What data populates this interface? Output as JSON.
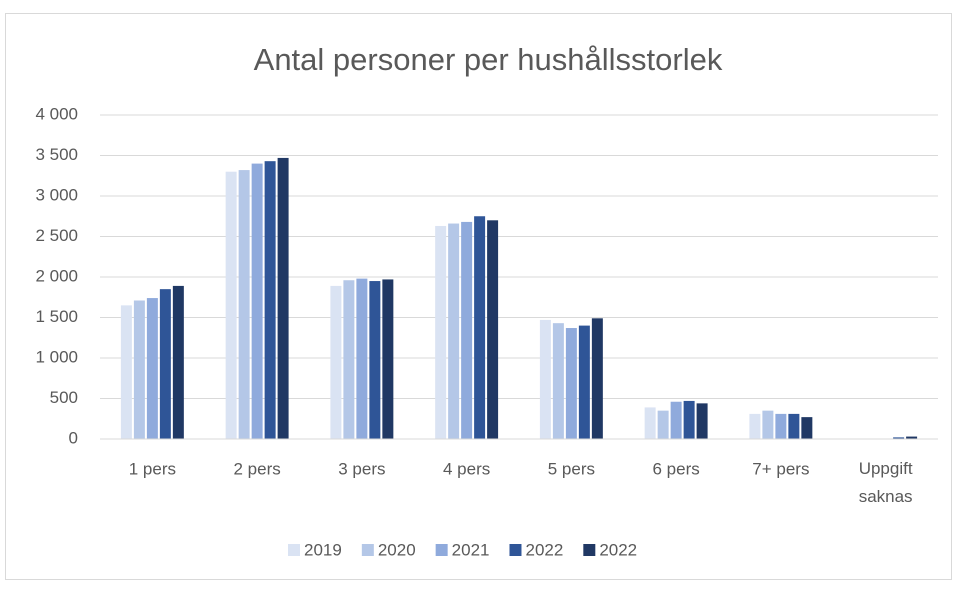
{
  "chart_data": {
    "type": "bar",
    "title": "Antal personer per hushållsstorlek",
    "categories": [
      "1 pers",
      "2 pers",
      "3 pers",
      "4 pers",
      "5 pers",
      "6 pers",
      "7+ pers",
      "Uppgift saknas"
    ],
    "series": [
      {
        "name": "2019",
        "color": "#dae3f3",
        "values": [
          1650,
          3300,
          1890,
          2630,
          1470,
          390,
          310,
          0
        ]
      },
      {
        "name": "2020",
        "color": "#b4c7e7",
        "values": [
          1710,
          3320,
          1960,
          2660,
          1430,
          350,
          350,
          0
        ]
      },
      {
        "name": "2021",
        "color": "#8faadc",
        "values": [
          1740,
          3400,
          1980,
          2680,
          1370,
          460,
          310,
          5
        ]
      },
      {
        "name": "2022",
        "color": "#2f5597",
        "values": [
          1850,
          3430,
          1950,
          2750,
          1400,
          470,
          310,
          20
        ]
      },
      {
        "name": "2022",
        "color": "#203864",
        "values": [
          1890,
          3470,
          1970,
          2700,
          1490,
          440,
          270,
          30
        ]
      }
    ],
    "ylim": [
      0,
      4000
    ],
    "yticks": [
      0,
      500,
      {
        "value": 1000,
        "label": "1 000"
      },
      {
        "value": 1500,
        "label": "1 500"
      },
      {
        "value": 2000,
        "label": "2 000"
      },
      {
        "value": 2500,
        "label": "2 500"
      },
      {
        "value": 3000,
        "label": "3 000"
      },
      {
        "value": 3500,
        "label": "3 500"
      },
      {
        "value": 4000,
        "label": "4 000"
      }
    ],
    "grid": true,
    "legend": "bottom"
  }
}
